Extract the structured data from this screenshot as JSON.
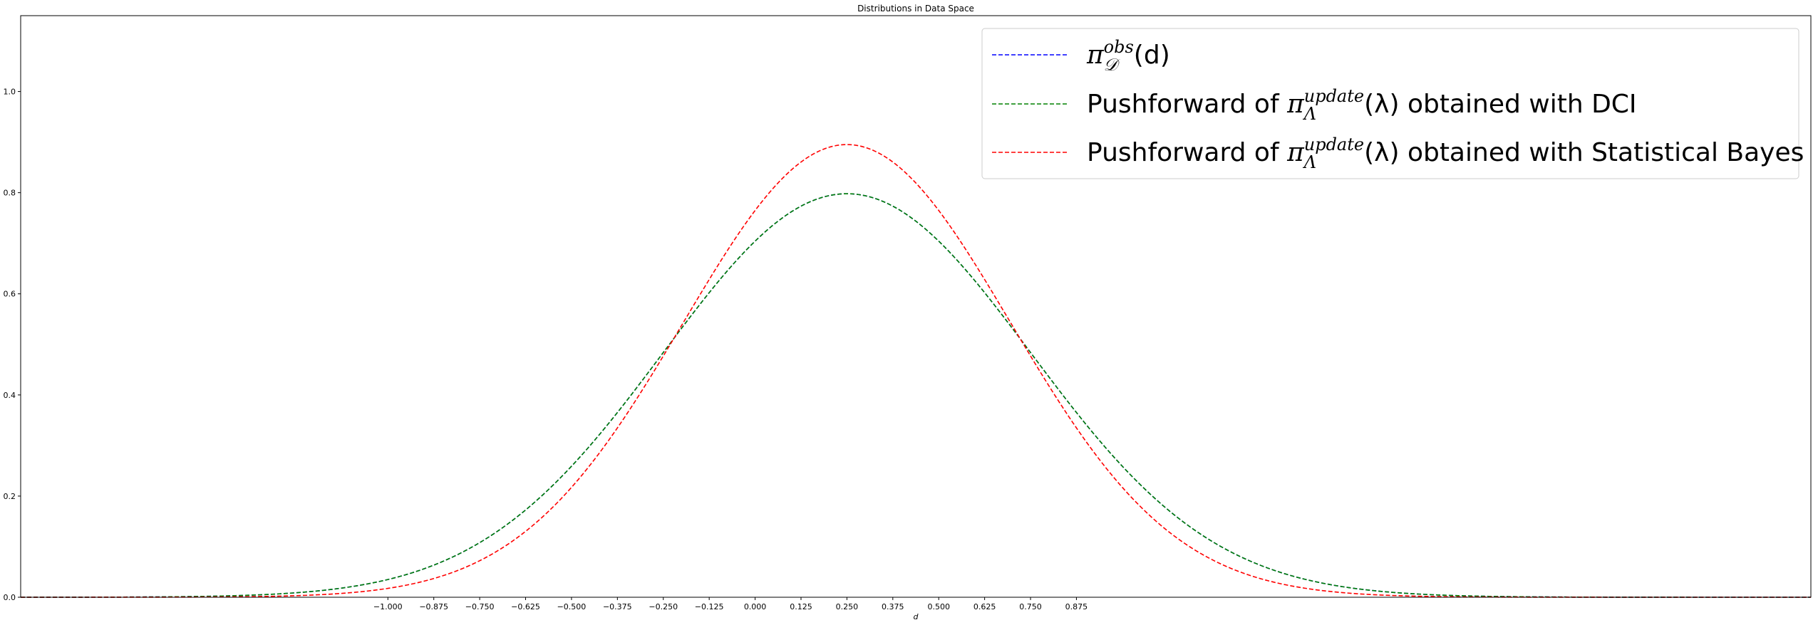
{
  "chart_data": {
    "type": "line",
    "title": "Distributions in Data Space",
    "xlabel": "d",
    "ylabel": "",
    "xlim": [
      -2.0,
      2.875
    ],
    "ylim": [
      0.0,
      1.15
    ],
    "grid": false,
    "legend_position": "top-right",
    "xticks": [
      -1.0,
      -0.875,
      -0.75,
      -0.625,
      -0.5,
      -0.375,
      -0.25,
      -0.125,
      0.0,
      0.125,
      0.25,
      0.375,
      0.5,
      0.625,
      0.75,
      0.875
    ],
    "xtick_labels": [
      "−1.000",
      "−0.875",
      "−0.750",
      "−0.625",
      "−0.500",
      "−0.375",
      "−0.250",
      "−0.125",
      "0.000",
      "0.125",
      "0.250",
      "0.375",
      "0.500",
      "0.625",
      "0.750",
      "0.875"
    ],
    "yticks": [
      0.0,
      0.2,
      0.4,
      0.6,
      0.8,
      1.0
    ],
    "ytick_labels": [
      "0.0",
      "0.2",
      "0.4",
      "0.6",
      "0.8",
      "1.0"
    ],
    "series": [
      {
        "name": "π_D^obs(d)",
        "legend": {
          "prefix": "",
          "sym": "π",
          "sub": "𝒟",
          "sup": "obs",
          "arg": "(d)",
          "suffix": ""
        },
        "color": "#0000ff",
        "style": "dashed",
        "distribution": "normal",
        "mean": 0.25,
        "std": 0.5
      },
      {
        "name": "Pushforward of π_Λ^update(λ) obtained with DCI",
        "legend": {
          "prefix": "Pushforward of ",
          "sym": "π",
          "sub": "Λ",
          "sup": "update",
          "arg": "(λ)",
          "suffix": " obtained with DCI"
        },
        "color": "#008000",
        "style": "dashed",
        "distribution": "normal",
        "mean": 0.25,
        "std": 0.5
      },
      {
        "name": "Pushforward of π_Λ^update(λ) obtained with Statistical Bayes",
        "legend": {
          "prefix": "Pushforward of ",
          "sym": "π",
          "sub": "Λ",
          "sup": "update",
          "arg": "(λ)",
          "suffix": " obtained with Statistical Bayes"
        },
        "color": "#ff0000",
        "style": "dashed",
        "distribution": "normal",
        "mean": 0.25,
        "std": 0.4457
      }
    ]
  }
}
